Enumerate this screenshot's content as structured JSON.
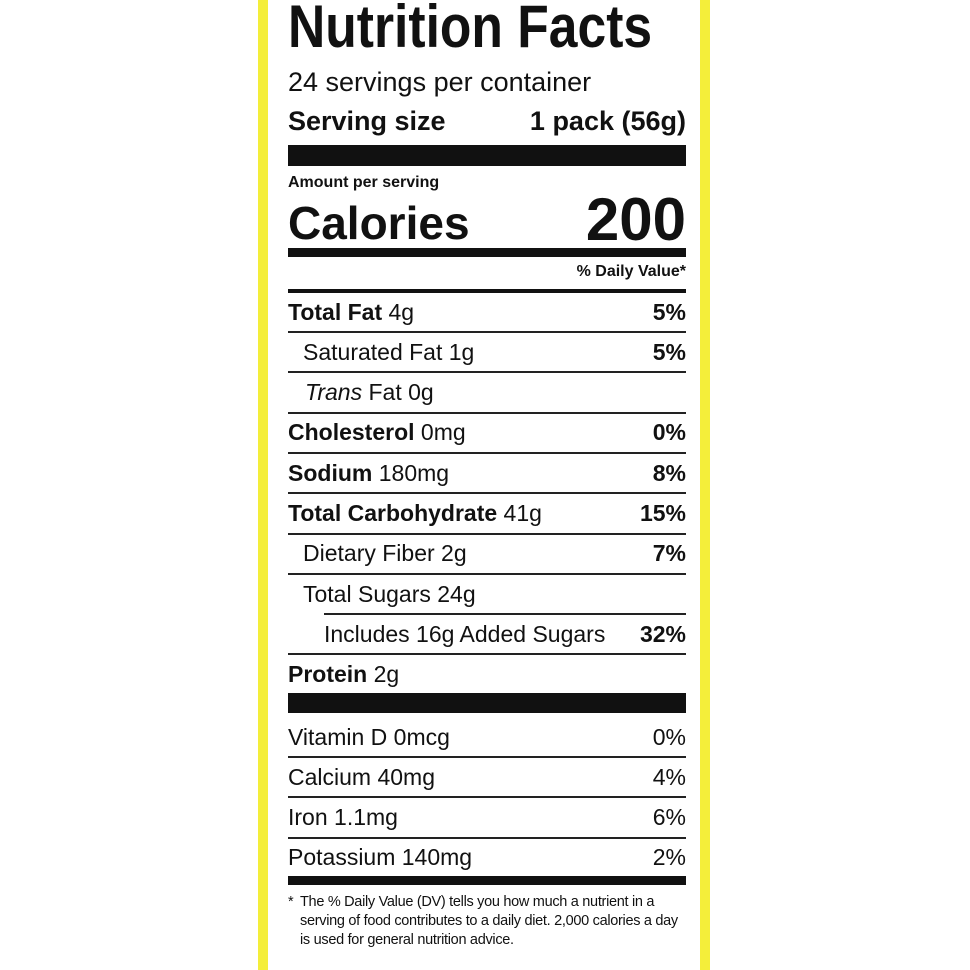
{
  "header": {
    "title": "Nutrition Facts",
    "servings": "24 servings per container",
    "serving_size_label": "Serving size",
    "serving_size_value": "1 pack (56g)"
  },
  "calories": {
    "amount_per_serving": "Amount per serving",
    "label": "Calories",
    "value": "200",
    "dv_header": "% Daily Value*"
  },
  "nutrients": [
    {
      "name": "Total Fat",
      "amount": "4g",
      "dv": "5%"
    },
    {
      "name": "Saturated Fat",
      "amount": "1g",
      "dv": "5%"
    },
    {
      "name_italic": "Trans",
      "name": "Fat",
      "amount": "0g"
    },
    {
      "name": "Cholesterol",
      "amount": "0mg",
      "dv": "0%"
    },
    {
      "name": "Sodium",
      "amount": "180mg",
      "dv": "8%"
    },
    {
      "name": "Total Carbohydrate",
      "amount": "41g",
      "dv": "15%"
    },
    {
      "name": "Dietary Fiber",
      "amount": "2g",
      "dv": "7%"
    },
    {
      "name": "Total Sugars",
      "amount": "24g"
    },
    {
      "name": "Includes 16g Added Sugars",
      "dv": "32%"
    },
    {
      "name": "Protein",
      "amount": "2g"
    }
  ],
  "vitamins": [
    {
      "name": "Vitamin D",
      "amount": "0mcg",
      "dv": "0%"
    },
    {
      "name": "Calcium",
      "amount": "40mg",
      "dv": "4%"
    },
    {
      "name": "Iron",
      "amount": "1.1mg",
      "dv": "6%"
    },
    {
      "name": "Potassium",
      "amount": "140mg",
      "dv": "2%"
    }
  ],
  "footnote": {
    "marker": "*",
    "text": "The % Daily Value (DV) tells you how much a nutrient in a serving of food contributes to a daily diet. 2,000 calories a day is used for general nutrition advice."
  }
}
